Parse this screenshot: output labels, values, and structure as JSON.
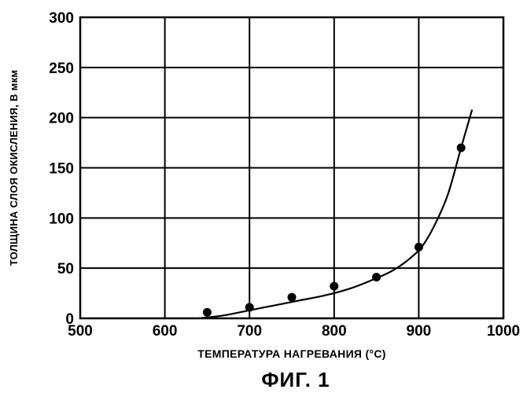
{
  "chart_data": {
    "type": "scatter",
    "title": "ФИГ. 1",
    "xlabel": "ТЕМПЕРАТУРА НАГРЕВАНИЯ (°C)",
    "ylabel": "ТОЛЩИНА СЛОЯ ОКИСЛЕНИЯ, В мкм",
    "xlim": [
      500,
      1000
    ],
    "ylim": [
      0,
      300
    ],
    "xticks": [
      "500",
      "600",
      "700",
      "800",
      "900",
      "1000"
    ],
    "yticks": [
      "0",
      "50",
      "100",
      "150",
      "200",
      "250",
      "300"
    ],
    "grid": true,
    "series": [
      {
        "kind": "points",
        "x": [
          650,
          700,
          750,
          800,
          850,
          900,
          950
        ],
        "y": [
          6,
          11,
          21,
          32,
          41,
          71,
          170
        ]
      },
      {
        "kind": "fitted-curve",
        "x": [
          640,
          670,
          700,
          730,
          760,
          790,
          820,
          850,
          870,
          890,
          905,
          920,
          935,
          950,
          963
        ],
        "y": [
          0,
          3,
          8,
          13,
          18,
          23,
          30,
          40,
          48,
          60,
          73,
          95,
          125,
          170,
          208
        ]
      }
    ]
  }
}
